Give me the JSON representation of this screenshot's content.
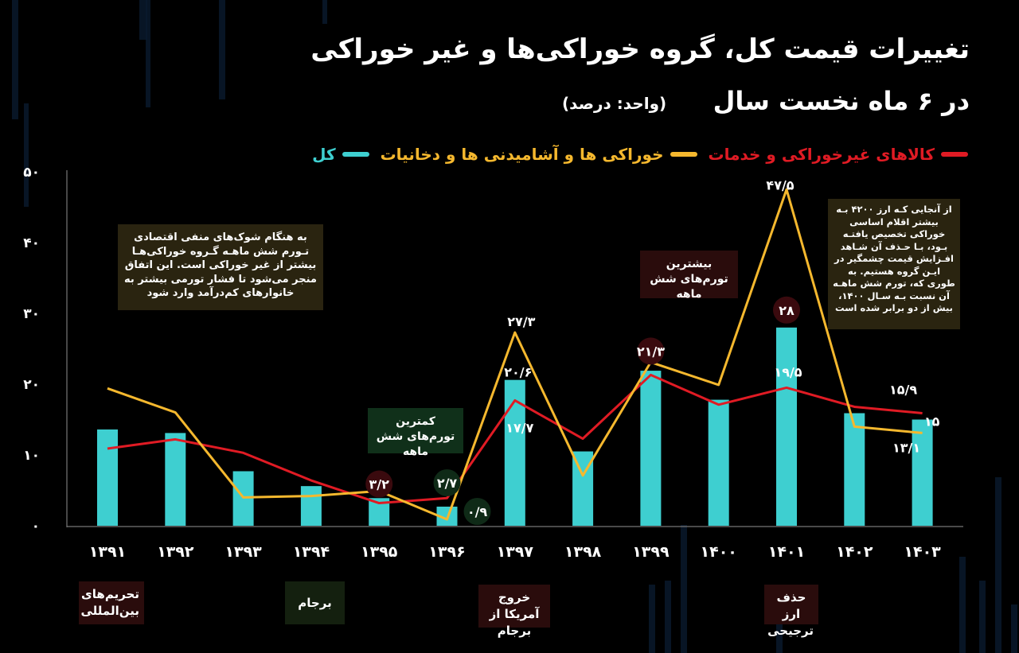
{
  "title_line1": "تغییرات قیمت کل، گروه خوراکی‌ها و غیر خوراکی",
  "title_line2": "در ۶ ماه نخست سال",
  "unit": "(واحد: درصد)",
  "legend": {
    "nonfood": "کالاهای غیرخوراکی و خدمات",
    "food": "خوراکی ها و آشامیدنی ها و دخانیات",
    "total": "کل"
  },
  "colors": {
    "nonfood": "#e01b24",
    "food": "#f5b82e",
    "total": "#3ecfd0",
    "background": "#000000"
  },
  "notes": {
    "left": "به هنگام شوک‌های منفی اقتصادی تـورم شش ماهـه گـروه خوراکی‌هـا بیشتر از غیر خوراکی است. این اتفاق منجر می‌شود تا فشار تورمی بیشتر به خانوارهای کم‌درآمد وارد شود",
    "highest": "بیشترین تورم‌های شش ماهه",
    "lowest": "کمترین تورم‌های شش ماهه",
    "right": "از آنجایی کـه ارز ۴۲۰۰ بـه بیشتر اقلام اساسی خوراکی تخصیص یافتـه بـود، بـا حـذف آن شـاهد افـزایش قیمت چشمگیر در ایـن گروه هستیم. به طوری که، تورم شش ماهـه آن نسبت بـه سـال ۱۴۰۰، بیش از دو برابر شده است"
  },
  "events": [
    {
      "text": "تحریم‌های بین‌المللی",
      "year_index": 0
    },
    {
      "text": "برجام",
      "year_index": 3
    },
    {
      "text": "خروج آمریکا از برجام",
      "year_index": 6
    },
    {
      "text": "حذف ارز ترجیحی",
      "year_index": 10
    }
  ],
  "chart_data": {
    "type": "bar+line",
    "categories": [
      "۱۳۹۱",
      "۱۳۹۲",
      "۱۳۹۳",
      "۱۳۹۴",
      "۱۳۹۵",
      "۱۳۹۶",
      "۱۳۹۷",
      "۱۳۹۸",
      "۱۳۹۹",
      "۱۴۰۰",
      "۱۴۰۱",
      "۱۴۰۲",
      "۱۴۰۳"
    ],
    "ylim": [
      0,
      50
    ],
    "yticks": [
      0,
      10,
      20,
      30,
      40,
      50
    ],
    "ytick_labels": [
      "۰",
      "۱۰",
      "۲۰",
      "۳۰",
      "۴۰",
      "۵۰"
    ],
    "series": [
      {
        "key": "total",
        "kind": "bar",
        "values": [
          13.6,
          13.1,
          7.7,
          5.6,
          3.9,
          2.7,
          20.6,
          10.5,
          21.9,
          17.8,
          28.0,
          15.9,
          15.0
        ]
      },
      {
        "key": "nonfood",
        "kind": "line",
        "values": [
          10.9,
          12.2,
          10.3,
          6.4,
          3.2,
          3.9,
          17.7,
          12.3,
          21.3,
          17.1,
          19.5,
          16.8,
          15.9
        ]
      },
      {
        "key": "food",
        "kind": "line",
        "values": [
          19.4,
          16.0,
          4.0,
          4.2,
          4.9,
          0.9,
          27.3,
          7.1,
          23.1,
          19.9,
          47.5,
          14.0,
          13.1
        ]
      }
    ],
    "data_labels": [
      {
        "text": "۳/۲",
        "series": "nonfood",
        "index": 4,
        "badge": true
      },
      {
        "text": "۲/۷",
        "series": "total",
        "index": 5,
        "badge": true
      },
      {
        "text": "۰/۹",
        "series": "food",
        "index": 5,
        "badge": true
      },
      {
        "text": "۲۷/۳",
        "series": "food",
        "index": 6,
        "badge": false
      },
      {
        "text": "۲۰/۶",
        "series": "total",
        "index": 6,
        "badge": false
      },
      {
        "text": "۱۷/۷",
        "series": "nonfood",
        "index": 6,
        "badge": false
      },
      {
        "text": "۲۱/۳",
        "series": "nonfood",
        "index": 8,
        "badge": true
      },
      {
        "text": "۴۷/۵",
        "series": "food",
        "index": 10,
        "badge": false
      },
      {
        "text": "۲۸",
        "series": "total",
        "index": 10,
        "badge": true
      },
      {
        "text": "۱۹/۵",
        "series": "nonfood",
        "index": 10,
        "badge": false
      },
      {
        "text": "۱۵/۹",
        "series": "nonfood",
        "index": 12,
        "badge": false
      },
      {
        "text": "۱۵",
        "series": "total",
        "index": 12,
        "badge": false
      },
      {
        "text": "۱۳/۱",
        "series": "food",
        "index": 12,
        "badge": false
      }
    ]
  }
}
